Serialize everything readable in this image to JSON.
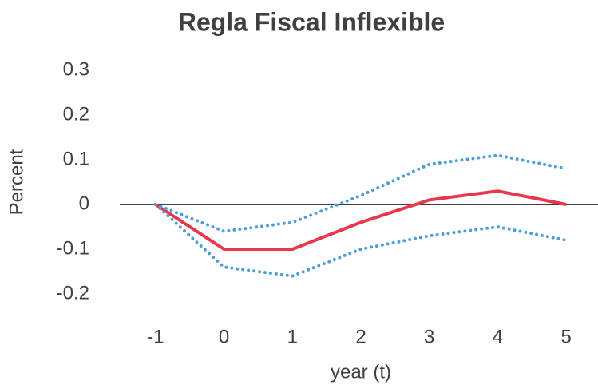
{
  "chart_data": {
    "type": "line",
    "title": "Regla Fiscal Inflexible",
    "x_label": "year (t)",
    "y_label": "Percent",
    "x": [
      -1,
      0,
      1,
      2,
      3,
      4,
      5
    ],
    "series": [
      {
        "color": "#e8384f",
        "style": "solid",
        "values": [
          0,
          -0.1,
          -0.1,
          -0.04,
          0.01,
          0.03,
          0
        ]
      },
      {
        "color": "#4a9fd8",
        "style": "dotted",
        "values": [
          0,
          -0.06,
          -0.04,
          0.02,
          0.09,
          0.11,
          0.08
        ]
      },
      {
        "color": "#4a9fd8",
        "style": "dotted",
        "values": [
          0,
          -0.14,
          -0.16,
          -0.1,
          -0.07,
          -0.05,
          -0.08
        ]
      }
    ],
    "xlim": [
      -1.5,
      5.5
    ],
    "xticks": [
      -1,
      0,
      1,
      2,
      3,
      4,
      5
    ],
    "ylim": [
      -0.2,
      0.3
    ],
    "yticks": [
      0.3,
      0.2,
      0.1,
      0,
      -0.1,
      -0.2
    ],
    "zero_line": true
  }
}
